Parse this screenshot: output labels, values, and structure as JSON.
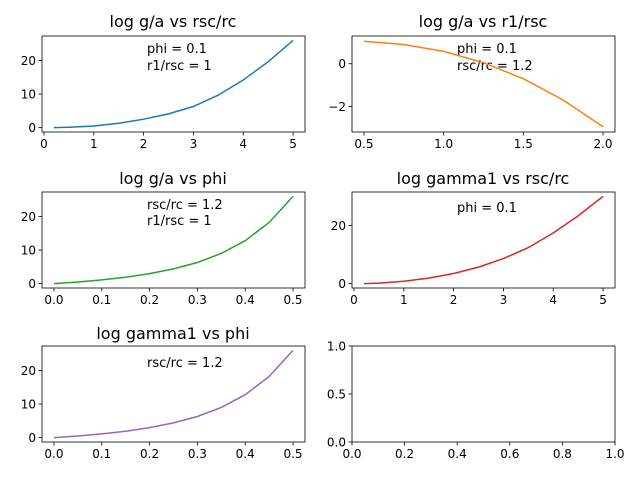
{
  "chart_data": [
    {
      "type": "line",
      "title": "log g/a vs rsc/rc",
      "xlim": [
        -0.04,
        5.24
      ],
      "ylim": [
        -1.3,
        27.3
      ],
      "xticks": [
        0,
        1,
        2,
        3,
        4,
        5
      ],
      "yticks": [
        0,
        10,
        20
      ],
      "annotations": [
        "phi = 0.1",
        "r1/rsc = 1"
      ],
      "series": [
        {
          "color": "#1f77b4",
          "x": [
            0.2,
            0.5,
            1.0,
            1.5,
            2.0,
            2.5,
            3.0,
            3.5,
            4.0,
            4.5,
            5.0
          ],
          "y": [
            0.0,
            0.1,
            0.5,
            1.3,
            2.5,
            4.1,
            6.3,
            9.7,
            14.2,
            19.6,
            26.0
          ]
        }
      ]
    },
    {
      "type": "line",
      "title": "log g/a vs r1/rsc",
      "xlim": [
        0.425,
        2.075
      ],
      "ylim": [
        -3.2,
        1.3
      ],
      "xticks": [
        0.5,
        1.0,
        1.5,
        2.0
      ],
      "xtick_labels": [
        "0.5",
        "1.0",
        "1.5",
        "2.0"
      ],
      "yticks": [
        -2,
        0
      ],
      "annotations": [
        "phi = 0.1",
        "rsc/rc = 1.2"
      ],
      "series": [
        {
          "color": "#ff7f0e",
          "x": [
            0.5,
            0.75,
            1.0,
            1.25,
            1.5,
            1.75,
            2.0
          ],
          "y": [
            1.05,
            0.9,
            0.58,
            0.05,
            -0.7,
            -1.7,
            -2.95
          ]
        }
      ]
    },
    {
      "type": "line",
      "title": "log g/a vs phi",
      "xlim": [
        -0.025,
        0.525
      ],
      "ylim": [
        -1.3,
        27.3
      ],
      "xticks": [
        0.0,
        0.1,
        0.2,
        0.3,
        0.4,
        0.5
      ],
      "xtick_labels": [
        "0.0",
        "0.1",
        "0.2",
        "0.3",
        "0.4",
        "0.5"
      ],
      "yticks": [
        0,
        10,
        20
      ],
      "annotations": [
        "rsc/rc = 1.2",
        "r1/rsc = 1"
      ],
      "series": [
        {
          "color": "#2ca02c",
          "x": [
            0.0,
            0.05,
            0.1,
            0.15,
            0.2,
            0.25,
            0.3,
            0.35,
            0.4,
            0.45,
            0.5
          ],
          "y": [
            0.0,
            0.5,
            1.1,
            1.9,
            3.0,
            4.4,
            6.3,
            9.0,
            12.8,
            18.2,
            26.0
          ]
        }
      ]
    },
    {
      "type": "line",
      "title": "log gamma1 vs rsc/rc",
      "xlim": [
        -0.04,
        5.24
      ],
      "ylim": [
        -1.5,
        31.5
      ],
      "xticks": [
        0,
        1,
        2,
        3,
        4,
        5
      ],
      "yticks": [
        0,
        20
      ],
      "annotations": [
        "phi = 0.1"
      ],
      "series": [
        {
          "color": "#d62728",
          "x": [
            0.2,
            0.5,
            1.0,
            1.5,
            2.0,
            2.5,
            3.0,
            3.5,
            4.0,
            4.5,
            5.0
          ],
          "y": [
            0.0,
            0.2,
            0.8,
            1.9,
            3.5,
            5.7,
            8.6,
            12.4,
            17.4,
            23.3,
            30.0
          ]
        }
      ]
    },
    {
      "type": "line",
      "title": "log gamma1 vs phi",
      "xlim": [
        -0.025,
        0.525
      ],
      "ylim": [
        -1.3,
        27.3
      ],
      "xticks": [
        0.0,
        0.1,
        0.2,
        0.3,
        0.4,
        0.5
      ],
      "xtick_labels": [
        "0.0",
        "0.1",
        "0.2",
        "0.3",
        "0.4",
        "0.5"
      ],
      "yticks": [
        0,
        10,
        20
      ],
      "annotations": [
        "rsc/rc = 1.2"
      ],
      "series": [
        {
          "color": "#9467bd",
          "x": [
            0.0,
            0.05,
            0.1,
            0.15,
            0.2,
            0.25,
            0.3,
            0.35,
            0.4,
            0.45,
            0.5
          ],
          "y": [
            0.0,
            0.5,
            1.1,
            1.9,
            3.0,
            4.4,
            6.3,
            9.0,
            12.8,
            18.2,
            26.0
          ]
        }
      ]
    },
    {
      "type": "line",
      "title": "",
      "xlim": [
        0.0,
        1.0
      ],
      "ylim": [
        0.0,
        1.0
      ],
      "xticks": [
        0.0,
        0.2,
        0.4,
        0.6,
        0.8,
        1.0
      ],
      "xtick_labels": [
        "0.0",
        "0.2",
        "0.4",
        "0.6",
        "0.8",
        "1.0"
      ],
      "yticks": [
        0.0,
        0.5,
        1.0
      ],
      "ytick_labels": [
        "0.0",
        "0.5",
        "1.0"
      ],
      "annotations": [],
      "series": []
    }
  ]
}
